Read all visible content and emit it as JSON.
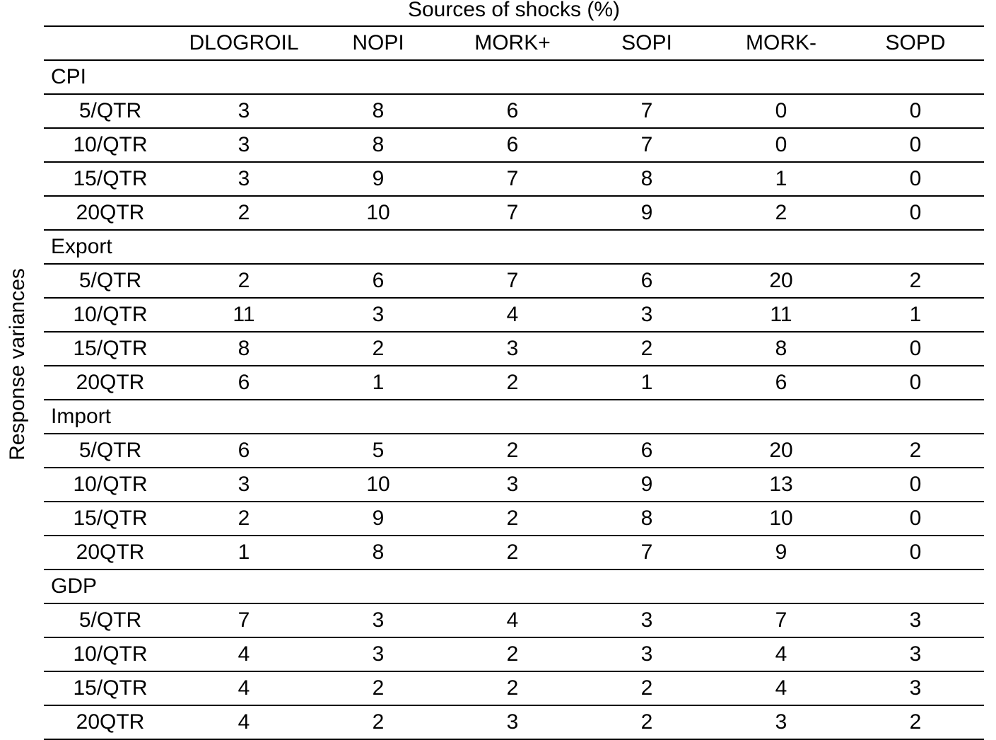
{
  "title": "Sources of shocks (%)",
  "row_axis_label": "Response variances",
  "columns": [
    "DLOGROIL",
    "NOPI",
    "MORK+",
    "SOPI",
    "MORK-",
    "SOPD"
  ],
  "groups": [
    {
      "name": "CPI",
      "rows": [
        {
          "horizon": "5/QTR",
          "values": [
            "3",
            "8",
            "6",
            "7",
            "0",
            "0"
          ]
        },
        {
          "horizon": "10/QTR",
          "values": [
            "3",
            "8",
            "6",
            "7",
            "0",
            "0"
          ]
        },
        {
          "horizon": "15/QTR",
          "values": [
            "3",
            "9",
            "7",
            "8",
            "1",
            "0"
          ]
        },
        {
          "horizon": "20QTR",
          "values": [
            "2",
            "10",
            "7",
            "9",
            "2",
            "0"
          ]
        }
      ]
    },
    {
      "name": "Export",
      "rows": [
        {
          "horizon": "5/QTR",
          "values": [
            "2",
            "6",
            "7",
            "6",
            "20",
            "2"
          ]
        },
        {
          "horizon": "10/QTR",
          "values": [
            "11",
            "3",
            "4",
            "3",
            "11",
            "1"
          ]
        },
        {
          "horizon": "15/QTR",
          "values": [
            "8",
            "2",
            "3",
            "2",
            "8",
            "0"
          ]
        },
        {
          "horizon": "20QTR",
          "values": [
            "6",
            "1",
            "2",
            "1",
            "6",
            "0"
          ]
        }
      ]
    },
    {
      "name": "Import",
      "rows": [
        {
          "horizon": "5/QTR",
          "values": [
            "6",
            "5",
            "2",
            "6",
            "20",
            "2"
          ]
        },
        {
          "horizon": "10/QTR",
          "values": [
            "3",
            "10",
            "3",
            "9",
            "13",
            "0"
          ]
        },
        {
          "horizon": "15/QTR",
          "values": [
            "2",
            "9",
            "2",
            "8",
            "10",
            "0"
          ]
        },
        {
          "horizon": "20QTR",
          "values": [
            "1",
            "8",
            "2",
            "7",
            "9",
            "0"
          ]
        }
      ]
    },
    {
      "name": "GDP",
      "rows": [
        {
          "horizon": "5/QTR",
          "values": [
            "7",
            "3",
            "4",
            "3",
            "7",
            "3"
          ]
        },
        {
          "horizon": "10/QTR",
          "values": [
            "4",
            "3",
            "2",
            "3",
            "4",
            "3"
          ]
        },
        {
          "horizon": "15/QTR",
          "values": [
            "4",
            "2",
            "2",
            "2",
            "4",
            "3"
          ]
        },
        {
          "horizon": "20QTR",
          "values": [
            "4",
            "2",
            "3",
            "2",
            "3",
            "2"
          ]
        }
      ]
    }
  ]
}
